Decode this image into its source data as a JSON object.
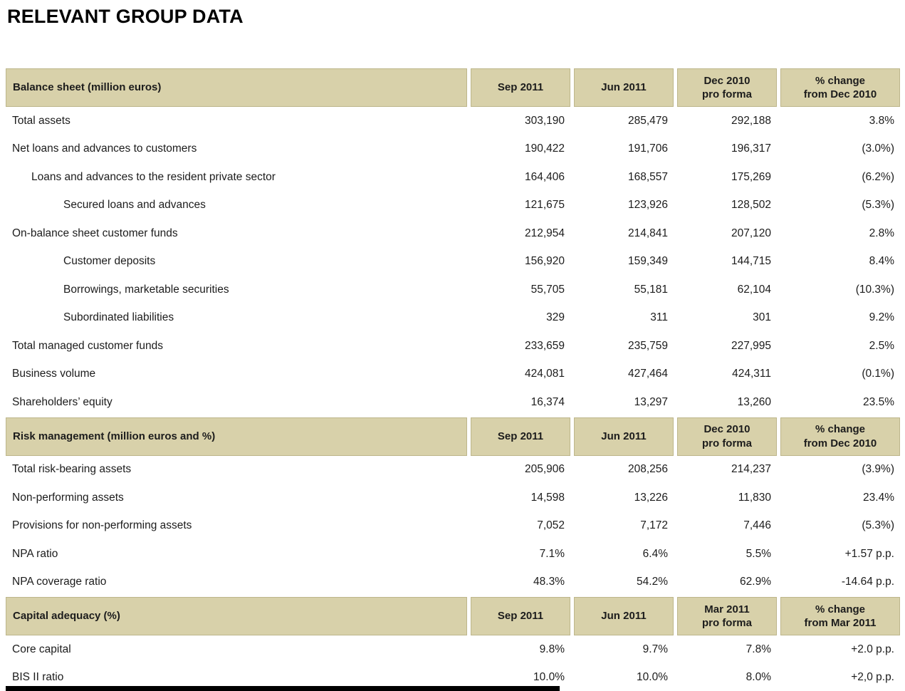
{
  "page_title": "RELEVANT GROUP DATA",
  "colors": {
    "header_bg": "#d8d1aa",
    "header_border": "#bdb68b",
    "text": "#1c1c1c",
    "bottom_bar": "#000000"
  },
  "sections": [
    {
      "header": {
        "label": "Balance sheet (million euros)",
        "columns": [
          "Sep 2011",
          "Jun 2011",
          "Dec 2010\npro forma",
          "% change\nfrom Dec 2010"
        ]
      },
      "rows": [
        {
          "label": "Total assets",
          "indent": 0,
          "values": [
            "303,190",
            "285,479",
            "292,188",
            "3.8%"
          ]
        },
        {
          "label": "Net loans and advances to customers",
          "indent": 0,
          "values": [
            "190,422",
            "191,706",
            "196,317",
            "(3.0%)"
          ]
        },
        {
          "label": "Loans and advances to the resident private sector",
          "indent": 1,
          "values": [
            "164,406",
            "168,557",
            "175,269",
            "(6.2%)"
          ]
        },
        {
          "label": "Secured loans and advances",
          "indent": 2,
          "values": [
            "121,675",
            "123,926",
            "128,502",
            "(5.3%)"
          ]
        },
        {
          "label": "On-balance sheet customer funds",
          "indent": 0,
          "values": [
            "212,954",
            "214,841",
            "207,120",
            "2.8%"
          ]
        },
        {
          "label": "Customer deposits",
          "indent": 2,
          "values": [
            "156,920",
            "159,349",
            "144,715",
            "8.4%"
          ]
        },
        {
          "label": "Borrowings, marketable securities",
          "indent": 2,
          "values": [
            "55,705",
            "55,181",
            "62,104",
            "(10.3%)"
          ]
        },
        {
          "label": "Subordinated liabilities",
          "indent": 2,
          "values": [
            "329",
            "311",
            "301",
            "9.2%"
          ]
        },
        {
          "label": "Total managed customer funds",
          "indent": 0,
          "values": [
            "233,659",
            "235,759",
            "227,995",
            "2.5%"
          ]
        },
        {
          "label": "Business volume",
          "indent": 0,
          "values": [
            "424,081",
            "427,464",
            "424,311",
            "(0.1%)"
          ]
        },
        {
          "label": "Shareholders’ equity",
          "indent": 0,
          "values": [
            "16,374",
            "13,297",
            "13,260",
            "23.5%"
          ]
        }
      ]
    },
    {
      "header": {
        "label": "Risk management (million euros and %)",
        "columns": [
          "Sep 2011",
          "Jun 2011",
          "Dec 2010\npro forma",
          "% change\nfrom Dec 2010"
        ]
      },
      "rows": [
        {
          "label": "Total risk-bearing assets",
          "indent": 0,
          "values": [
            "205,906",
            "208,256",
            "214,237",
            "(3.9%)"
          ]
        },
        {
          "label": "Non-performing assets",
          "indent": 0,
          "values": [
            "14,598",
            "13,226",
            "11,830",
            "23.4%"
          ]
        },
        {
          "label": "Provisions for non-performing assets",
          "indent": 0,
          "values": [
            "7,052",
            "7,172",
            "7,446",
            "(5.3%)"
          ]
        },
        {
          "label": "NPA ratio",
          "indent": 0,
          "values": [
            "7.1%",
            "6.4%",
            "5.5%",
            "+1.57 p.p."
          ]
        },
        {
          "label": "NPA coverage ratio",
          "indent": 0,
          "values": [
            "48.3%",
            "54.2%",
            "62.9%",
            "-14.64 p.p."
          ]
        }
      ]
    },
    {
      "header": {
        "label": "Capital adequacy (%)",
        "columns": [
          "Sep 2011",
          "Jun 2011",
          "Mar 2011\npro forma",
          "% change\nfrom Mar 2011"
        ]
      },
      "rows": [
        {
          "label": "Core capital",
          "indent": 0,
          "values": [
            "9.8%",
            "9.7%",
            "7.8%",
            "+2.0 p.p."
          ]
        },
        {
          "label": "BIS II ratio",
          "indent": 0,
          "values": [
            "10.0%",
            "10.0%",
            "8.0%",
            "+2,0 p.p."
          ]
        }
      ]
    }
  ]
}
